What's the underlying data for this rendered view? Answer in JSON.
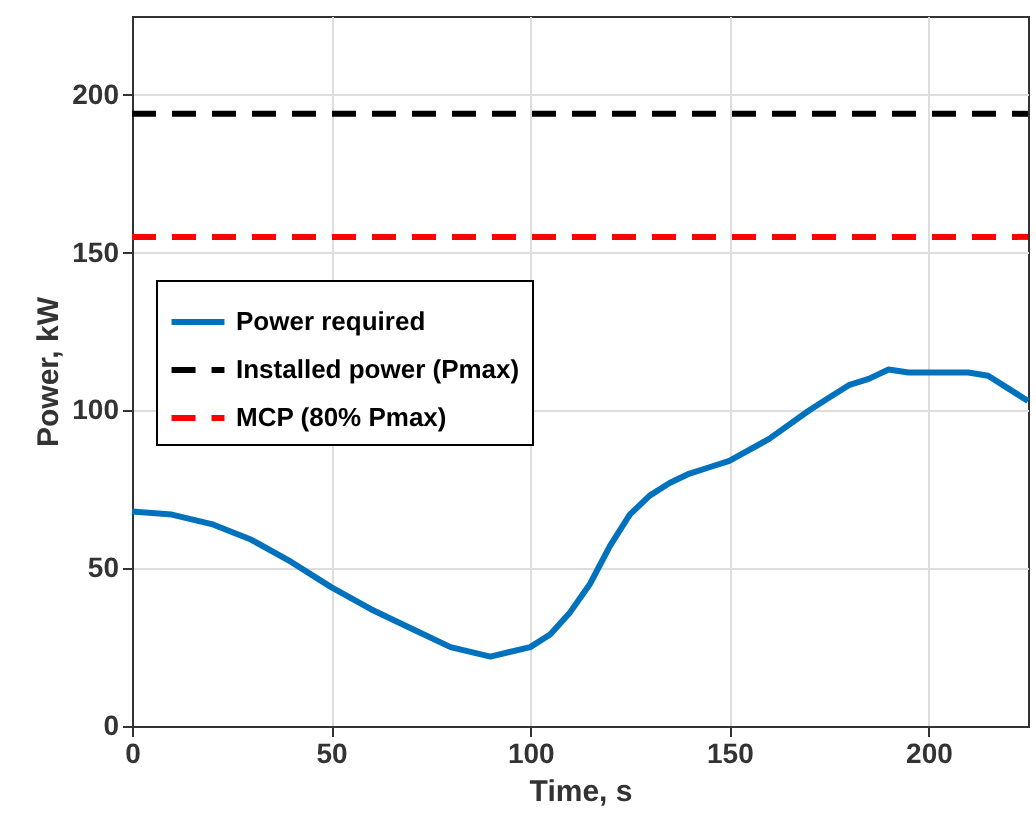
{
  "chart_data": {
    "type": "line",
    "xlabel": "Time, s",
    "ylabel": "Power, kW",
    "xlim": [
      0,
      225
    ],
    "ylim": [
      0,
      225
    ],
    "xticks": [
      0,
      50,
      100,
      150,
      200
    ],
    "yticks": [
      0,
      50,
      100,
      150,
      200
    ],
    "grid": true,
    "legend": "top left",
    "series": [
      {
        "name": "Power required",
        "color": "#0072bd",
        "line_style": "solid",
        "x": [
          0,
          10,
          20,
          30,
          40,
          50,
          60,
          70,
          80,
          90,
          100,
          105,
          110,
          115,
          120,
          125,
          130,
          135,
          140,
          145,
          150,
          160,
          170,
          175,
          180,
          185,
          190,
          195,
          200,
          210,
          215,
          220,
          225
        ],
        "values": [
          68,
          67,
          64,
          59,
          52,
          44,
          37,
          31,
          25,
          22,
          25,
          29,
          36,
          45,
          57,
          67,
          73,
          77,
          80,
          82,
          84,
          91,
          100,
          104,
          108,
          110,
          113,
          112,
          112,
          112,
          111,
          107,
          103
        ]
      },
      {
        "name": "Installed power (Pmax)",
        "color": "#000000",
        "line_style": "dashed",
        "x": [
          0,
          225
        ],
        "values": [
          194,
          194
        ]
      },
      {
        "name": "MCP (80% Pmax)",
        "color": "#ff0000",
        "line_style": "dashed",
        "x": [
          0,
          225
        ],
        "values": [
          155,
          155
        ]
      }
    ]
  }
}
